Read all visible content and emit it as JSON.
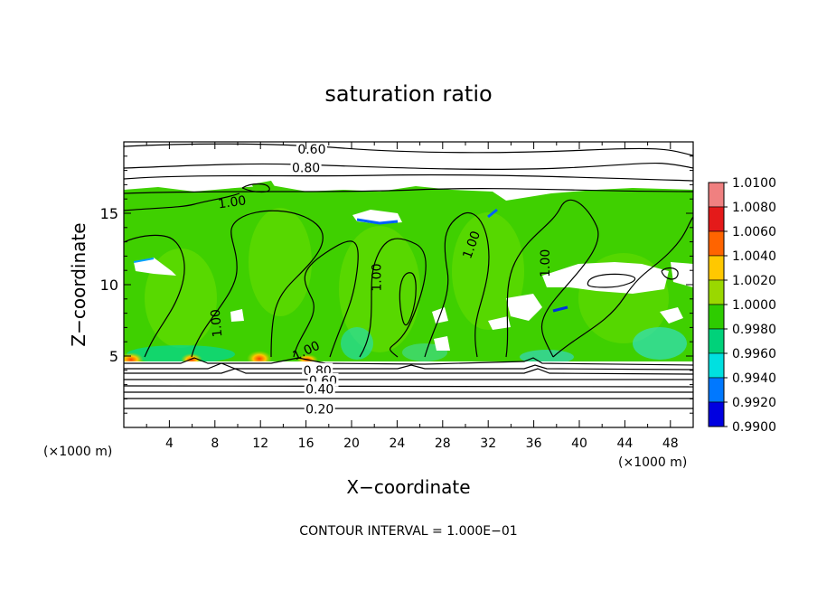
{
  "chart_data": {
    "type": "heatmap",
    "title": "saturation ratio",
    "xlabel": "X−coordinate",
    "ylabel": "Z−coordinate",
    "x_units_left": "(×1000 m)",
    "x_units_right": "(×1000 m)",
    "xlim": [
      0,
      50
    ],
    "ylim": [
      0,
      20
    ],
    "x_ticks": [
      "4",
      "8",
      "12",
      "16",
      "20",
      "24",
      "28",
      "32",
      "36",
      "40",
      "44",
      "48"
    ],
    "y_ticks": [
      "5",
      "10",
      "15"
    ],
    "footer": "CONTOUR INTERVAL = 1.000E−01",
    "colorbar": {
      "labels": [
        "1.0100",
        "1.0080",
        "1.0060",
        "1.0040",
        "1.0020",
        "1.0000",
        "0.9980",
        "0.9960",
        "0.9940",
        "0.9920",
        "0.9900"
      ],
      "colors": [
        "#f08080",
        "#e41a1a",
        "#ff6400",
        "#ffc800",
        "#9ad800",
        "#2ecc00",
        "#00d27a",
        "#00e0e0",
        "#0078ff",
        "#0000e0",
        "#3c0090"
      ]
    },
    "contour_labels": [
      {
        "text": "0.60",
        "x": 16.5,
        "y": 19.5
      },
      {
        "text": "0.80",
        "x": 16.0,
        "y": 18.2
      },
      {
        "text": "1.00",
        "x": 9.5,
        "y": 15.8
      },
      {
        "text": "1.00",
        "x": 22.2,
        "y": 10.5
      },
      {
        "text": "1.00",
        "x": 30.5,
        "y": 12.8
      },
      {
        "text": "1.00",
        "x": 37.0,
        "y": 11.5
      },
      {
        "text": "1.00",
        "x": 8.1,
        "y": 7.3
      },
      {
        "text": "1.00",
        "x": 16.0,
        "y": 5.4
      },
      {
        "text": "0.80",
        "x": 17.0,
        "y": 4.0
      },
      {
        "text": "0.60",
        "x": 17.5,
        "y": 3.3
      },
      {
        "text": "0.40",
        "x": 17.2,
        "y": 2.7
      },
      {
        "text": "0.20",
        "x": 17.2,
        "y": 1.3
      }
    ]
  }
}
